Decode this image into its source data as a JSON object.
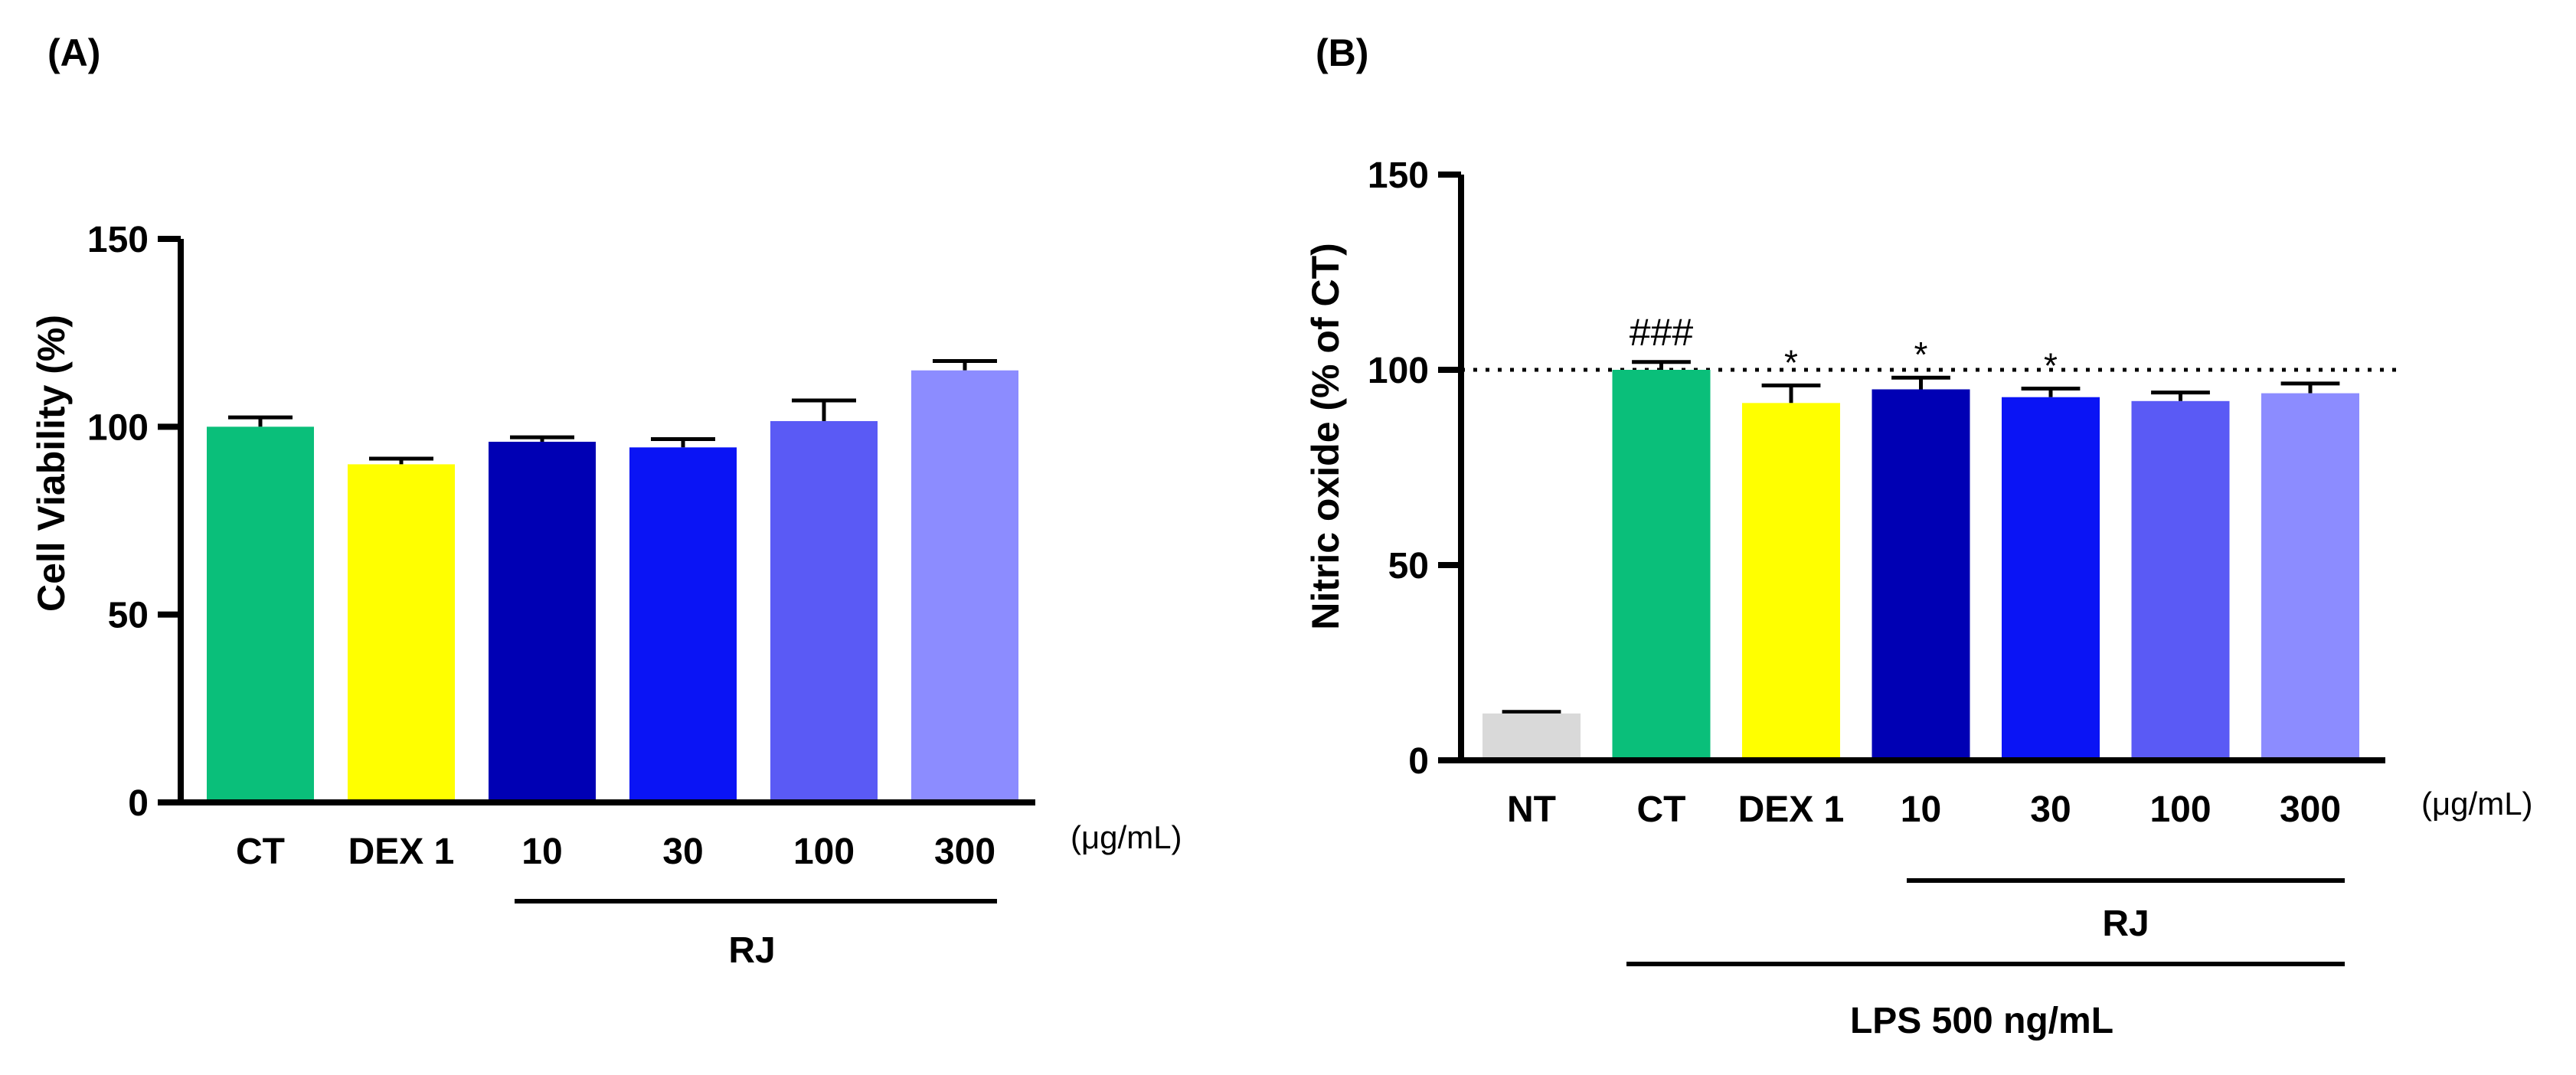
{
  "chart_data": [
    {
      "type": "bar",
      "panel_label": "(A)",
      "ylabel": "Cell Viability (%)",
      "ylim": [
        0,
        150
      ],
      "yticks": [
        0,
        50,
        100,
        150
      ],
      "categories": [
        "CT",
        "DEX 1",
        "10",
        "30",
        "100",
        "300"
      ],
      "values": [
        100,
        90,
        96,
        94.5,
        101.5,
        115
      ],
      "errors": [
        2.5,
        1.5,
        1.2,
        2.2,
        5.5,
        2.5
      ],
      "colors": [
        "#0abf7a",
        "#ffff00",
        "#0000b4",
        "#0a14f5",
        "#5a5af5",
        "#8c8cff"
      ],
      "unit_label": "(μg/mL)",
      "group_label": "RJ"
    },
    {
      "type": "bar",
      "panel_label": "(B)",
      "ylabel": "Nitric oxide (% of CT)",
      "ylim": [
        0,
        150
      ],
      "yticks": [
        0,
        50,
        100,
        150
      ],
      "reference_line": 100,
      "categories": [
        "NT",
        "CT",
        "DEX 1",
        "10",
        "30",
        "100",
        "300"
      ],
      "values": [
        12,
        100,
        91.5,
        95,
        93,
        92,
        94
      ],
      "errors": [
        0.4,
        2,
        4.5,
        3,
        2.2,
        2.2,
        2.5
      ],
      "colors": [
        "#d9d9d9",
        "#0abf7a",
        "#ffff00",
        "#0000b4",
        "#0a14f5",
        "#5a5af5",
        "#8c8cff"
      ],
      "annotations": [
        "",
        "###",
        "*",
        "*",
        "*",
        "",
        ""
      ],
      "unit_label": "(μg/mL)",
      "group_label": "RJ",
      "treatment_label": "LPS 500 ng/mL"
    }
  ]
}
